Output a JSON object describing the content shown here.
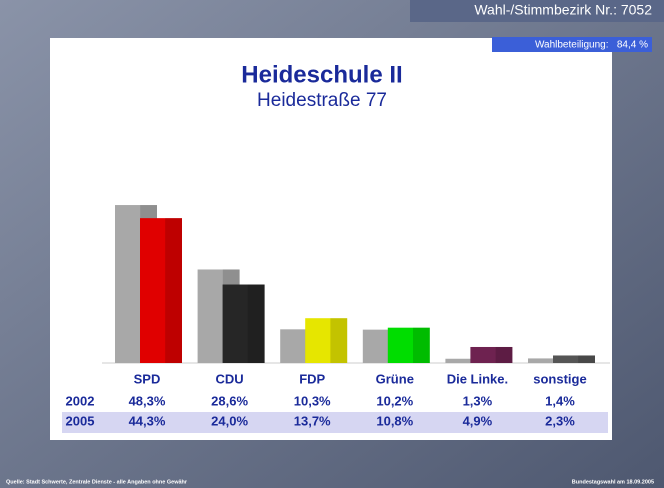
{
  "header": {
    "district": "Wahl-/Stimmbezirk Nr.: 7052",
    "turnout": "Wahlbeteiligung:   84,4 %"
  },
  "chart_data": {
    "type": "bar",
    "title": "Heideschule II",
    "subtitle": "Heidestraße 77",
    "categories": [
      "SPD",
      "CDU",
      "FDP",
      "Grüne",
      "Die Linke.",
      "sonstige"
    ],
    "series": [
      {
        "name": "2002",
        "color": "#a8a8a8",
        "values": [
          48.3,
          28.6,
          10.3,
          10.2,
          1.3,
          1.4
        ],
        "value_labels": [
          "48,3%",
          "28,6%",
          "10,3%",
          "10,2%",
          "1,3%",
          "1,4%"
        ]
      },
      {
        "name": "2005",
        "colors": [
          "#e00000",
          "#262626",
          "#e6e600",
          "#00dd00",
          "#6e2250",
          "#555555"
        ],
        "values": [
          44.3,
          24.0,
          13.7,
          10.8,
          4.9,
          2.3
        ],
        "value_labels": [
          "44,3%",
          "24,0%",
          "13,7%",
          "10,8%",
          "4,9%",
          "2,3%"
        ]
      }
    ]
  },
  "footer": {
    "source": "Quelle: Stadt Schwerte, Zentrale Dienste - alle Angaben ohne Gewähr",
    "election": "Bundestagswahl am 18.09.2005"
  }
}
